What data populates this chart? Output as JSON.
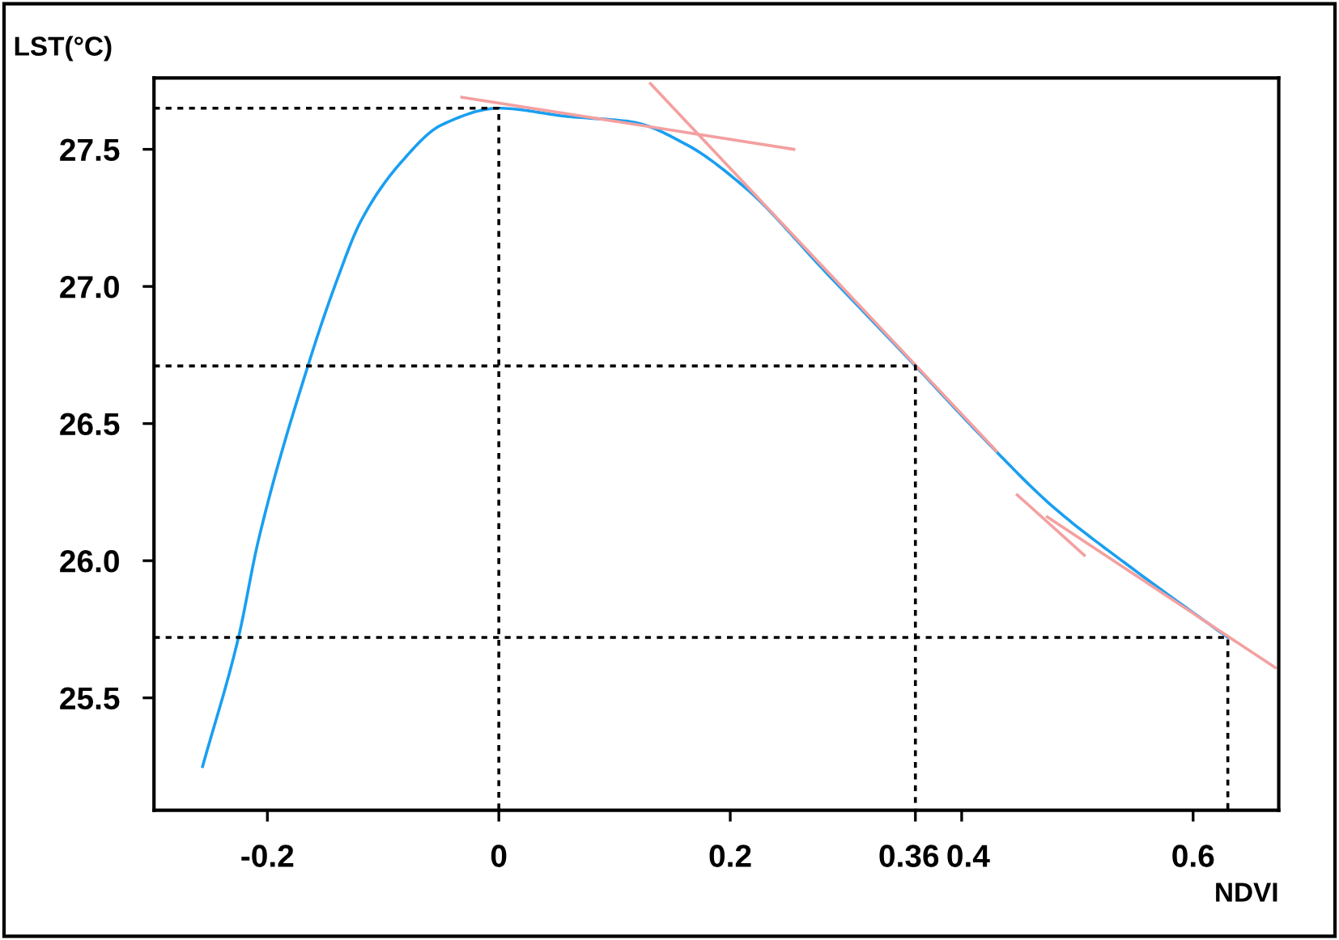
{
  "chart_data": {
    "type": "line",
    "xlabel": "NDVI",
    "ylabel": "LST(°C)",
    "xlim": [
      -0.298,
      0.674
    ],
    "ylim": [
      25.09,
      27.76
    ],
    "xticks": [
      -0.2,
      0,
      0.2,
      0.36,
      0.4,
      0.6
    ],
    "yticks": [
      {
        "value": 25.5,
        "label": "25.5"
      },
      {
        "value": 26.0,
        "label": "26.0"
      },
      {
        "value": 26.5,
        "label": "26.5"
      },
      {
        "value": 27.0,
        "label": "27.0"
      },
      {
        "value": 27.5,
        "label": "27.5"
      }
    ],
    "grid": false,
    "legend": false,
    "marker": "none",
    "series": [
      {
        "color": "#1a9ff0",
        "line_style": "solid",
        "x": [
          -0.256,
          -0.225,
          -0.208,
          -0.165,
          -0.141,
          -0.119,
          -0.085,
          -0.049,
          0,
          0.059,
          0.115,
          0.161,
          0.213,
          0.283,
          0.36,
          0.418,
          0.478,
          0.548,
          0.63
        ],
        "values": [
          25.25,
          25.72,
          26.07,
          26.71,
          27.01,
          27.24,
          27.45,
          27.59,
          27.65,
          27.62,
          27.6,
          27.52,
          27.36,
          27.05,
          26.71,
          26.45,
          26.2,
          25.97,
          25.72
        ]
      },
      {
        "color": "#f4a0a0",
        "line_style": "solid",
        "x": [
          -0.032,
          0.255
        ],
        "values": [
          27.69,
          27.5
        ]
      },
      {
        "color": "#f4a0a0",
        "line_style": "solid",
        "x": [
          0.131,
          0.43
        ],
        "values": [
          27.74,
          26.4
        ]
      },
      {
        "color": "#f4a0a0",
        "line_style": "solid",
        "x": [
          0.448,
          0.506
        ],
        "values": [
          26.24,
          26.02
        ]
      },
      {
        "color": "#f4a0a0",
        "line_style": "solid",
        "x": [
          0.474,
          0.671
        ],
        "values": [
          26.16,
          25.61
        ]
      },
      {
        "color": "#000000",
        "line_style": "dotted",
        "x": [
          -0.298,
          0,
          0
        ],
        "values": [
          27.65,
          27.65,
          25.09
        ]
      },
      {
        "color": "#000000",
        "line_style": "dotted",
        "x": [
          -0.298,
          0.36,
          0.36
        ],
        "values": [
          26.71,
          26.71,
          25.09
        ]
      },
      {
        "color": "#000000",
        "line_style": "dotted",
        "x": [
          -0.298,
          0.63,
          0.63
        ],
        "values": [
          25.72,
          25.72,
          25.09
        ]
      }
    ]
  }
}
